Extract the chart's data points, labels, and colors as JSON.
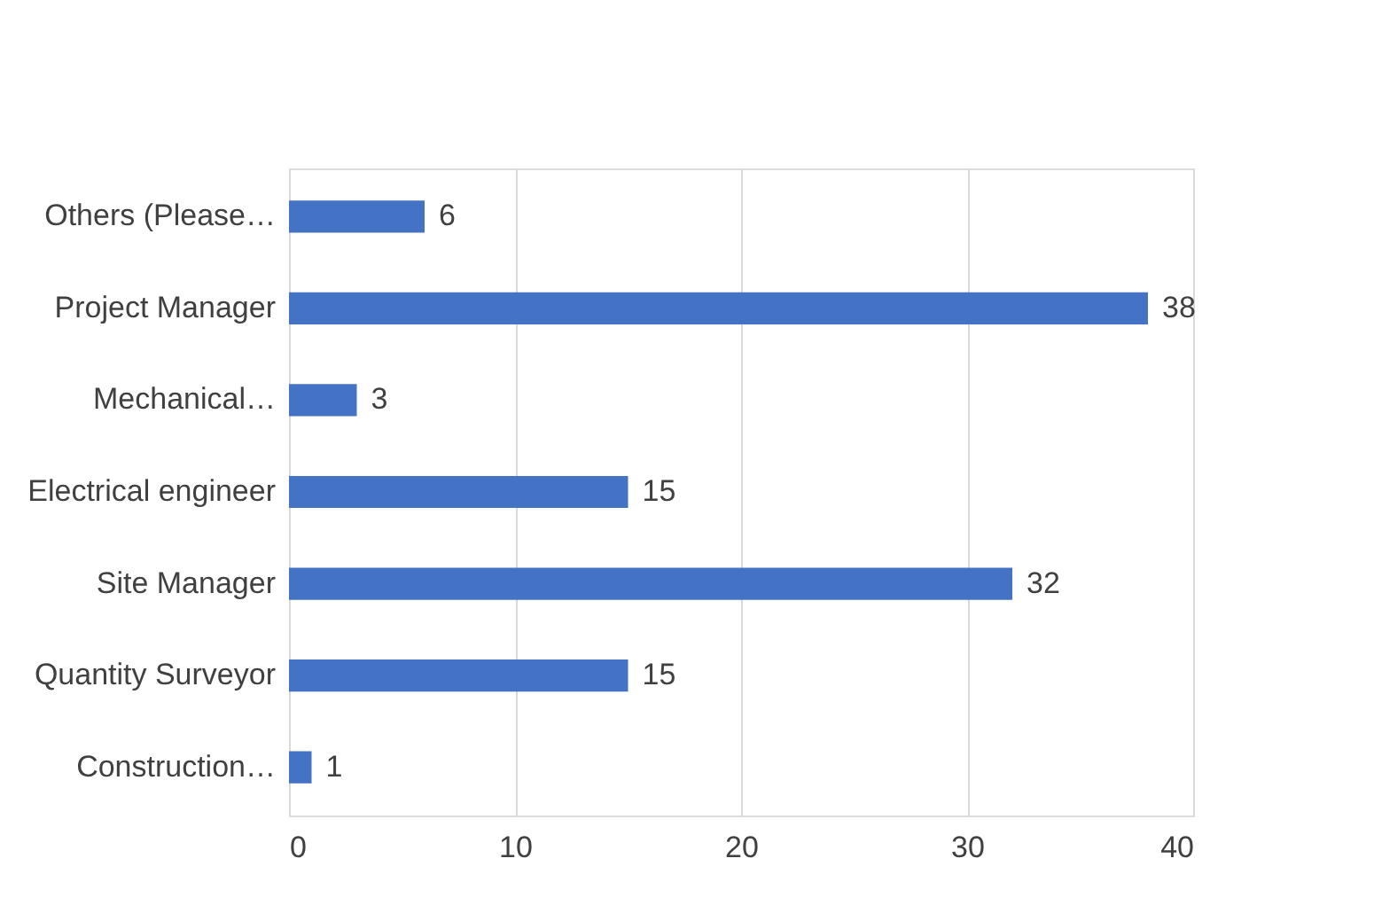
{
  "chart_data": {
    "type": "bar",
    "orientation": "horizontal",
    "categories": [
      "Others (Please…",
      "Project Manager",
      "Mechanical…",
      "Electrical engineer",
      "Site Manager",
      "Quantity Surveyor",
      "Construction…"
    ],
    "values": [
      6,
      38,
      3,
      15,
      32,
      15,
      1
    ],
    "color": "#4472c4",
    "xlim": [
      0,
      40
    ],
    "xticks": [
      0,
      10,
      20,
      30,
      40
    ],
    "grid": "x",
    "data_labels": true
  }
}
